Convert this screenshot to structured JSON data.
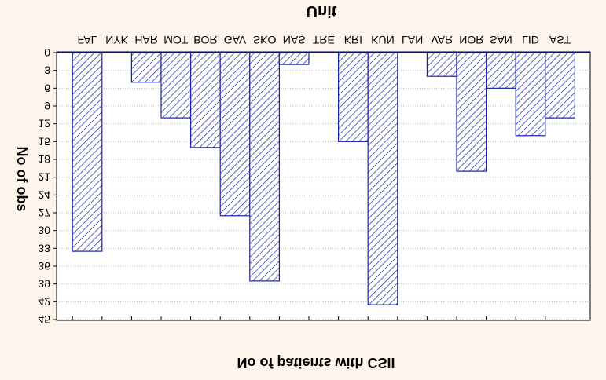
{
  "chart_data": {
    "type": "bar",
    "title": "Unit",
    "xlabel": "No of patients with CSII",
    "ylabel": "No of obs",
    "categories": [
      "FAL",
      "NYK",
      "HAR",
      "MOT",
      "BOR",
      "GAV",
      "SKO",
      "NAS",
      "TRE",
      "KRI",
      "KUN",
      "LAN",
      "VAR",
      "NOR",
      "SAN",
      "LID",
      "AST"
    ],
    "values": [
      33.5,
      0,
      5,
      11,
      16,
      27.5,
      38.5,
      2,
      0,
      15,
      42.5,
      0,
      4,
      20,
      6,
      14,
      11
    ],
    "y_ticks": [
      0,
      3,
      6,
      9,
      12,
      15,
      18,
      21,
      24,
      27,
      30,
      33,
      36,
      39,
      42,
      45
    ],
    "ylim": [
      0,
      45
    ],
    "grid": true,
    "orientation": "image shown rotated 180 degrees (text mirrored/upside-down)",
    "colors": {
      "bar_stroke": "#1a22a8",
      "hatch": "#1a22a8",
      "background": "#fdf5ec",
      "plot_bg": "#ffffff",
      "grid": "#b8b8b8"
    }
  }
}
